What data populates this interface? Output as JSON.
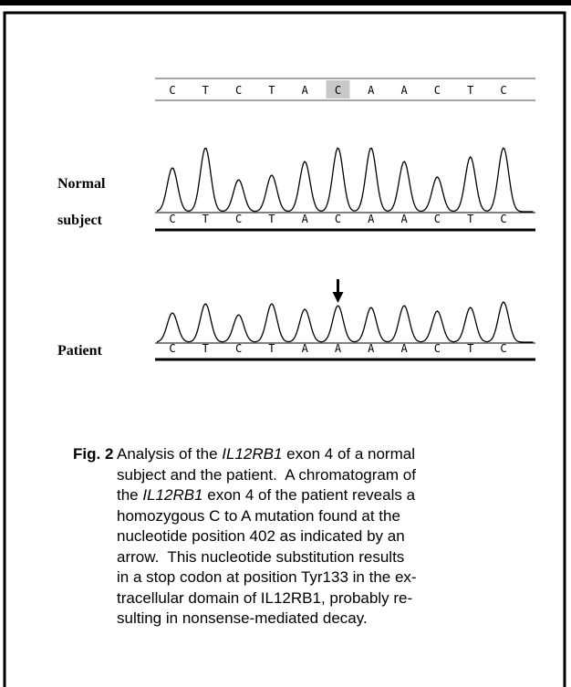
{
  "figure": {
    "reference": {
      "bases": [
        "C",
        "T",
        "C",
        "T",
        "A",
        "C",
        "A",
        "A",
        "C",
        "T",
        "C"
      ],
      "highlight": 5
    },
    "normal": {
      "label": [
        "Normal",
        "subject"
      ],
      "bases": [
        "C",
        "T",
        "C",
        "T",
        "A",
        "C",
        "A",
        "A",
        "C",
        "T",
        "C"
      ]
    },
    "patient": {
      "label": "Patient",
      "bases": [
        "C",
        "T",
        "C",
        "T",
        "A",
        "A",
        "A",
        "A",
        "C",
        "T",
        "C"
      ],
      "arrow": 5
    }
  },
  "caption": {
    "label": "Fig. 2",
    "lines": [
      [
        "Analysis of the ",
        "IL12RB1",
        " exon 4 of a normal"
      ],
      [
        "subject and the patient.  A chromatogram of"
      ],
      [
        "the ",
        "IL12RB1",
        " exon 4 of the patient reveals a"
      ],
      [
        "homozygous C to A mutation found at the"
      ],
      [
        "nucleotide position 402 as indicated by an"
      ],
      [
        "arrow.  This nucleotide substitution results"
      ],
      [
        "in a stop codon at position Tyr133 in the ex-"
      ],
      [
        "tracellular domain of IL12RB1, probably re-"
      ],
      [
        "sulting in nonsense-mediated decay."
      ]
    ]
  }
}
